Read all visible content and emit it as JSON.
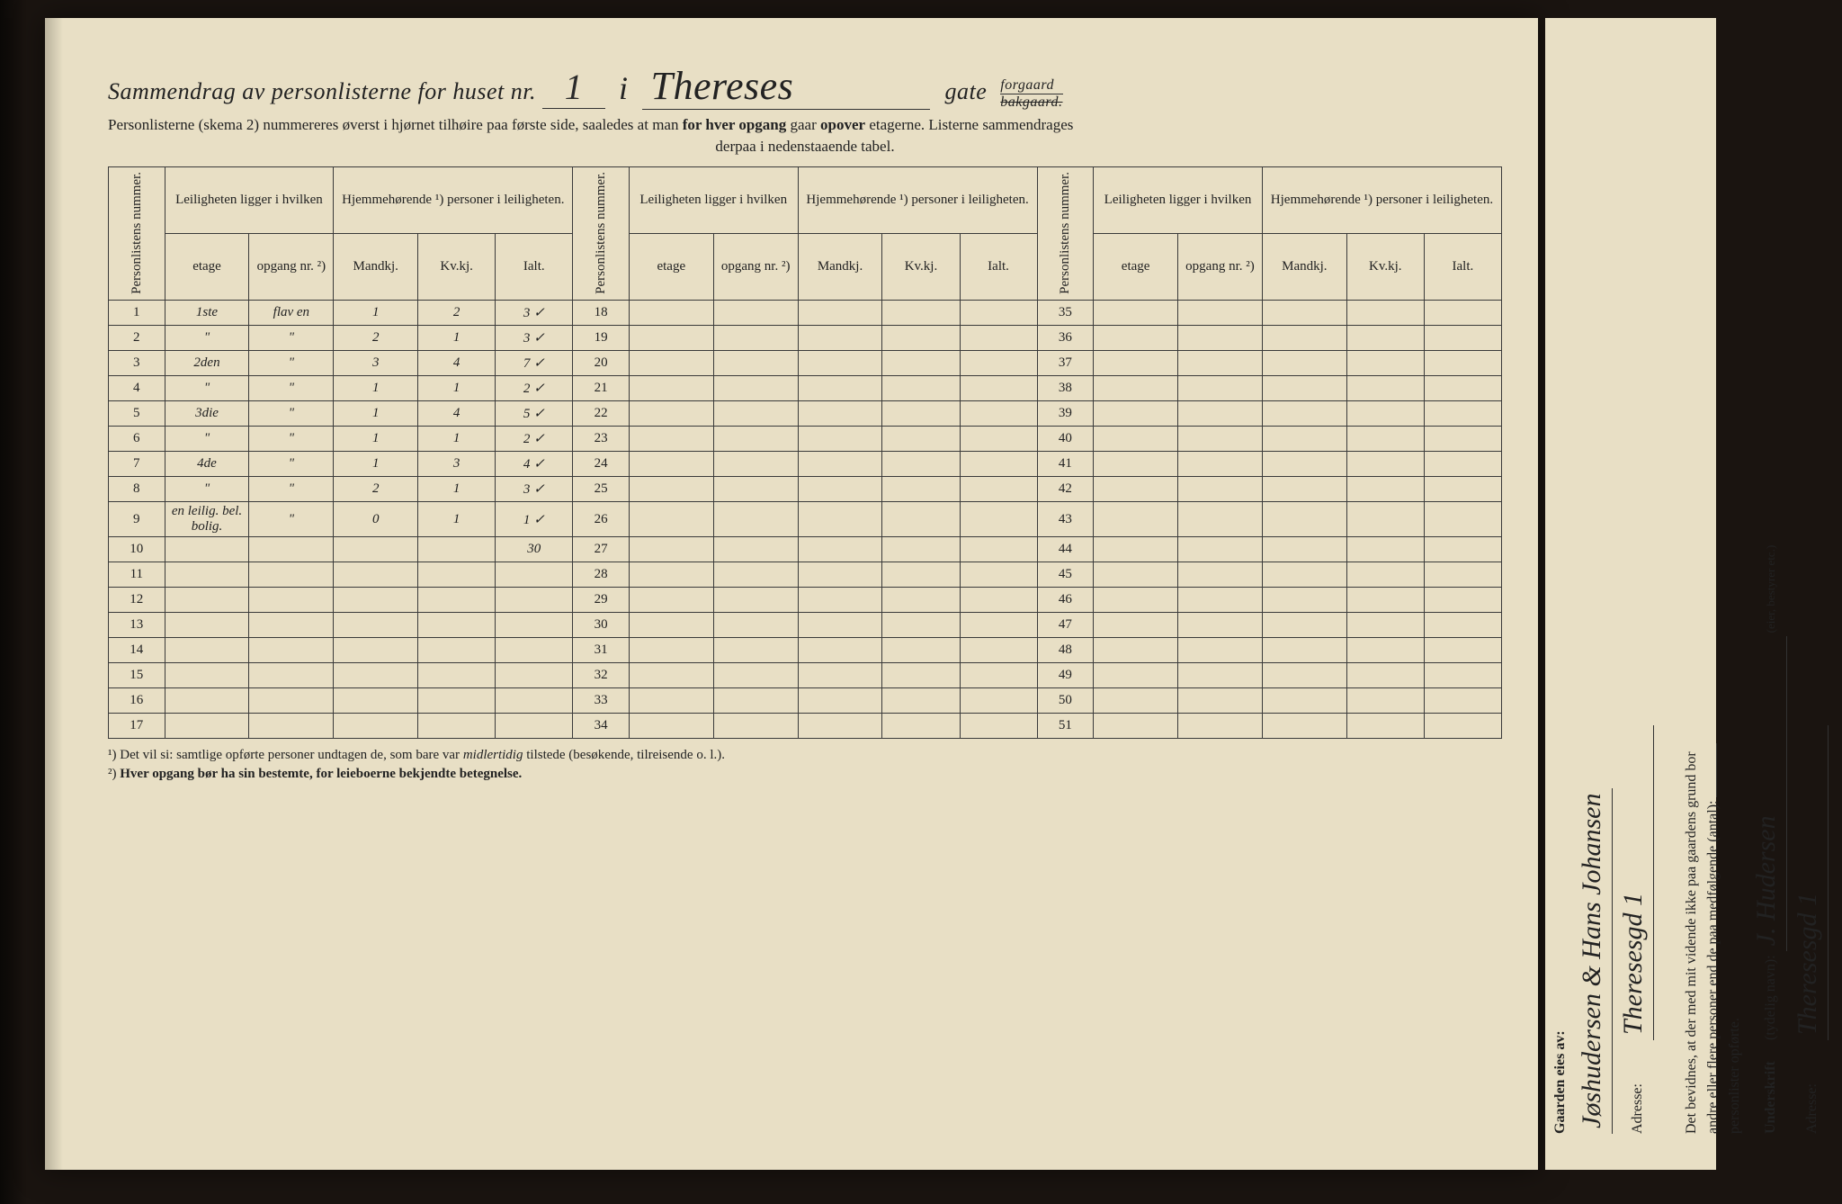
{
  "header": {
    "title_prefix": "Sammendrag av personlisterne for huset nr.",
    "house_nr": "1",
    "i": "i",
    "street": "Thereses",
    "gate": "gate",
    "forgaard": "forgaard",
    "bakgaard": "bakgaard.",
    "subtitle": "Personlisterne (skema 2) nummereres øverst i hjørnet tilhøire paa første side, saaledes at man ",
    "subtitle_bold": "for hver opgang",
    "subtitle_after": " gaar ",
    "subtitle_bold2": "opover",
    "subtitle_end": " etagerne.  Listerne sammendrages",
    "subtitle_line2": "derpaa i nedenstaaende tabel."
  },
  "table": {
    "headers": {
      "personlistens": "Personlistens nummer.",
      "leiligheten": "Leiligheten ligger i hvilken",
      "hjemme": "Hjemmehørende ¹) personer i leiligheten.",
      "etage": "etage",
      "opgang": "opgang nr. ²)",
      "mandkj": "Mandkj.",
      "kvkj": "Kv.kj.",
      "ialt": "Ialt."
    },
    "row_labels_1": [
      "1",
      "2",
      "3",
      "4",
      "5",
      "6",
      "7",
      "8",
      "9",
      "10",
      "11",
      "12",
      "13",
      "14",
      "15",
      "16",
      "17"
    ],
    "row_labels_2": [
      "18",
      "19",
      "20",
      "21",
      "22",
      "23",
      "24",
      "25",
      "26",
      "27",
      "28",
      "29",
      "30",
      "31",
      "32",
      "33",
      "34"
    ],
    "row_labels_3": [
      "35",
      "36",
      "37",
      "38",
      "39",
      "40",
      "41",
      "42",
      "43",
      "44",
      "45",
      "46",
      "47",
      "48",
      "49",
      "50",
      "51"
    ],
    "data": [
      {
        "etage": "1ste",
        "opgang": "flav en",
        "m": "1",
        "k": "2",
        "i": "3 ✓"
      },
      {
        "etage": "\"",
        "opgang": "\"",
        "m": "2",
        "k": "1",
        "i": "3 ✓"
      },
      {
        "etage": "2den",
        "opgang": "\"",
        "m": "3",
        "k": "4",
        "i": "7 ✓"
      },
      {
        "etage": "\"",
        "opgang": "\"",
        "m": "1",
        "k": "1",
        "i": "2 ✓"
      },
      {
        "etage": "3die",
        "opgang": "\"",
        "m": "1",
        "k": "4",
        "i": "5 ✓"
      },
      {
        "etage": "\"",
        "opgang": "\"",
        "m": "1",
        "k": "1",
        "i": "2 ✓"
      },
      {
        "etage": "4de",
        "opgang": "\"",
        "m": "1",
        "k": "3",
        "i": "4 ✓"
      },
      {
        "etage": "\"",
        "opgang": "\"",
        "m": "2",
        "k": "1",
        "i": "3 ✓"
      },
      {
        "etage": "en leilig. bel. bolig.",
        "opgang": "\"",
        "m": "0",
        "k": "1",
        "i": "1 ✓"
      },
      {
        "etage": "",
        "opgang": "",
        "m": "",
        "k": "",
        "i": "30"
      }
    ]
  },
  "footnotes": {
    "f1": "¹) Det vil si: samtlige opførte personer undtagen de, som bare var ",
    "f1_ital": "midlertidig",
    "f1_after": " tilstede (besøkende, tilreisende o. l.).",
    "f2_pre": "²) ",
    "f2_bold": "Hver opgang bør ha sin bestemte, for leieboerne bekjendte betegnelse."
  },
  "side": {
    "owner_label": "Gaarden eies av:",
    "owner_value": "Jøshudersen & Hans Johansen",
    "adresse_label": "Adresse:",
    "adresse_value": "Theresesgd 1",
    "witness_text1": "Det bevidnes, at der med mit vidende ikke paa gaardens grund bor",
    "witness_text2": "andre eller flere personer end de paa medfølgende (antal):",
    "witness_text3": "personlister opførte.",
    "undersk_label": "Underskrift",
    "undersk_note": "(tydelig navn):",
    "undersk_value": "J. Hudersen",
    "role_note": "(eier, bestyrer etc.)",
    "adresse_value2": "Theresesgd 1"
  },
  "style": {
    "paper_bg": "#e8dfc5",
    "ink": "#222222",
    "border": "#3a3a3a"
  }
}
